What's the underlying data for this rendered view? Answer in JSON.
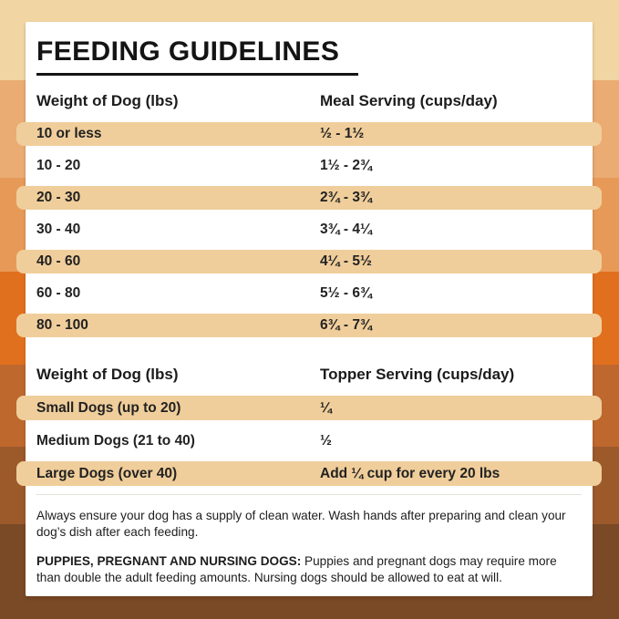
{
  "title": "FEEDING GUIDELINES",
  "colors": {
    "row_highlight": "#F0CE9B",
    "card_background": "#FFFFFF",
    "text": "#1B1B1B",
    "background_bands": [
      "#F1D5A2",
      "#EAAC72",
      "#E79A58",
      "#E1701E",
      "#BE682E",
      "#9C5A2A",
      "#7A4926"
    ]
  },
  "meal_table": {
    "col1_header": "Weight of Dog (lbs)",
    "col2_header": "Meal Serving (cups/day)",
    "rows": [
      {
        "weight": "10 or less",
        "serving": "½ - 1½",
        "highlight": true
      },
      {
        "weight": "10 - 20",
        "serving": "1½ - 2¾",
        "highlight": false
      },
      {
        "weight": "20 - 30",
        "serving": "2¾ - 3¾",
        "highlight": true
      },
      {
        "weight": "30 - 40",
        "serving": "3¾ - 4¼",
        "highlight": false
      },
      {
        "weight": "40 - 60",
        "serving": "4¼ - 5½",
        "highlight": true
      },
      {
        "weight": "60 - 80",
        "serving": "5½ - 6¾",
        "highlight": false
      },
      {
        "weight": "80 - 100",
        "serving": "6¾ - 7¾",
        "highlight": true
      }
    ]
  },
  "topper_table": {
    "col1_header": "Weight of Dog (lbs)",
    "col2_header": "Topper Serving (cups/day)",
    "rows": [
      {
        "weight": "Small Dogs (up to 20)",
        "serving": "¼",
        "highlight": true
      },
      {
        "weight": "Medium Dogs (21 to 40)",
        "serving": "½",
        "highlight": false
      },
      {
        "weight": "Large Dogs (over 40)",
        "serving": "Add ¼ cup for every 20 lbs",
        "highlight": true
      }
    ]
  },
  "notes": {
    "water_note": "Always ensure your dog has a supply of clean water. Wash hands after preparing and clean your dog’s dish after each feeding.",
    "puppies_label": "PUPPIES, PREGNANT AND NURSING DOGS:",
    "puppies_text": " Puppies and pregnant dogs may require more than double the adult feeding amounts. Nursing dogs should be allowed to eat at will."
  }
}
